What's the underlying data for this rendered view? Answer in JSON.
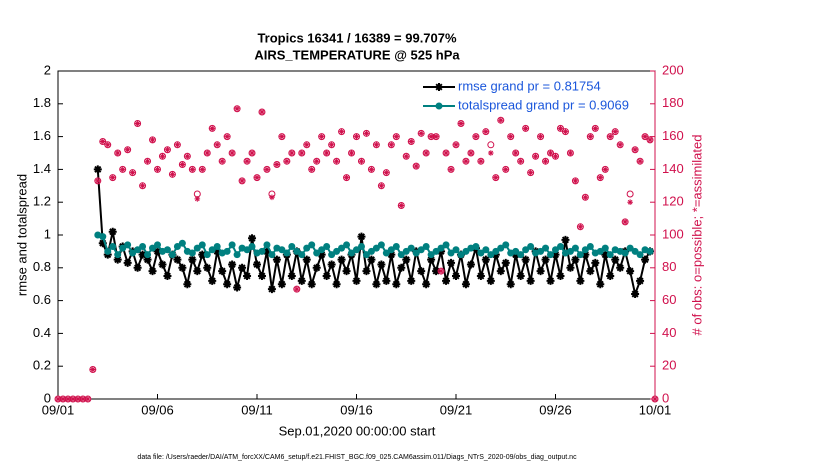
{
  "chart_data": {
    "type": "line",
    "title": "Tropics 16341 / 16389 = 99.707%",
    "subtitle": "AIRS_TEMPERATURE @ 525 hPa",
    "xlabel": "Sep.01,2020 00:00:00 start",
    "ylabel": "rmse and totalspread",
    "y2label": "# of obs: o=possible; *=assimilated",
    "footnote": "data file: /Users/raeder/DAI/ATM_forcXX/CAM6_setup/f.e21.FHIST_BGC.f09_025.CAM6assim.011/Diags_NTrS_2020-09/obs_diag_output.nc",
    "legend": "upper right",
    "xlim": [
      0,
      30
    ],
    "xticks": [
      {
        "value": 0,
        "label": "09/01"
      },
      {
        "value": 5,
        "label": "09/06"
      },
      {
        "value": 10,
        "label": "09/11"
      },
      {
        "value": 15,
        "label": "09/16"
      },
      {
        "value": 20,
        "label": "09/21"
      },
      {
        "value": 25,
        "label": "09/26"
      },
      {
        "value": 30,
        "label": "10/01"
      }
    ],
    "ylim": [
      0,
      2
    ],
    "yticks": [
      0,
      0.2,
      0.4,
      0.6,
      0.8,
      1,
      1.2,
      1.4,
      1.6,
      1.8,
      2
    ],
    "y2lim": [
      0,
      200
    ],
    "y2ticks": [
      0,
      20,
      40,
      60,
      80,
      100,
      120,
      140,
      160,
      180,
      200
    ],
    "x": [
      0,
      0.25,
      0.5,
      0.75,
      1,
      1.25,
      1.5,
      1.75,
      2,
      2.25,
      2.5,
      2.75,
      3,
      3.25,
      3.5,
      3.75,
      4,
      4.25,
      4.5,
      4.75,
      5,
      5.25,
      5.5,
      5.75,
      6,
      6.25,
      6.5,
      6.75,
      7,
      7.25,
      7.5,
      7.75,
      8,
      8.25,
      8.5,
      8.75,
      9,
      9.25,
      9.5,
      9.75,
      10,
      10.25,
      10.5,
      10.75,
      11,
      11.25,
      11.5,
      11.75,
      12,
      12.25,
      12.5,
      12.75,
      13,
      13.25,
      13.5,
      13.75,
      14,
      14.25,
      14.5,
      14.75,
      15,
      15.25,
      15.5,
      15.75,
      16,
      16.25,
      16.5,
      16.75,
      17,
      17.25,
      17.5,
      17.75,
      18,
      18.25,
      18.5,
      18.75,
      19,
      19.25,
      19.5,
      19.75,
      20,
      20.25,
      20.5,
      20.75,
      21,
      21.25,
      21.5,
      21.75,
      22,
      22.25,
      22.5,
      22.75,
      23,
      23.25,
      23.5,
      23.75,
      24,
      24.25,
      24.5,
      24.75,
      25,
      25.25,
      25.5,
      25.75,
      26,
      26.25,
      26.5,
      26.75,
      27,
      27.25,
      27.5,
      27.75,
      28,
      28.25,
      28.5,
      28.75,
      29,
      29.25,
      29.5,
      29.75,
      30
    ],
    "series": [
      {
        "name": "rmse grand pr = 0.81754",
        "color": "#000000",
        "marker": "star",
        "line": true,
        "values": [
          null,
          null,
          null,
          null,
          null,
          null,
          null,
          null,
          1.4,
          0.95,
          0.88,
          1.02,
          0.85,
          0.93,
          0.83,
          0.9,
          0.8,
          0.88,
          0.85,
          0.78,
          0.9,
          0.82,
          0.75,
          0.88,
          0.85,
          0.8,
          0.7,
          0.85,
          0.78,
          0.88,
          0.8,
          0.72,
          0.9,
          0.78,
          0.7,
          0.82,
          0.68,
          0.8,
          0.75,
          0.98,
          0.82,
          0.75,
          0.9,
          0.67,
          0.85,
          0.7,
          0.88,
          0.75,
          0.9,
          0.72,
          0.85,
          0.7,
          0.8,
          0.88,
          0.75,
          0.82,
          0.7,
          0.85,
          0.78,
          0.88,
          0.72,
          0.99,
          0.78,
          0.85,
          0.7,
          0.82,
          0.72,
          0.88,
          0.7,
          0.8,
          0.85,
          0.72,
          0.9,
          0.78,
          0.7,
          0.85,
          0.78,
          0.9,
          0.72,
          0.83,
          0.75,
          0.88,
          0.7,
          0.82,
          0.92,
          0.75,
          0.85,
          0.72,
          0.88,
          0.78,
          0.83,
          0.7,
          0.88,
          0.75,
          0.85,
          0.72,
          0.9,
          0.78,
          0.85,
          0.72,
          0.88,
          0.75,
          0.97,
          0.8,
          0.85,
          0.72,
          0.88,
          0.78,
          0.83,
          0.7,
          0.88,
          0.75,
          0.85,
          0.8,
          0.9,
          0.78,
          0.64,
          0.72,
          0.85,
          0.9,
          null
        ]
      },
      {
        "name": "totalspread grand pr = 0.9069",
        "color": "#008080",
        "marker": "dot",
        "line": true,
        "values": [
          null,
          null,
          null,
          null,
          null,
          null,
          null,
          null,
          1.0,
          0.99,
          0.9,
          0.93,
          0.88,
          0.92,
          0.94,
          0.89,
          0.91,
          0.93,
          0.88,
          0.92,
          0.94,
          0.9,
          0.91,
          0.88,
          0.93,
          0.95,
          0.9,
          0.89,
          0.92,
          0.94,
          0.88,
          0.91,
          0.93,
          0.89,
          0.9,
          0.94,
          0.88,
          0.92,
          0.91,
          0.93,
          0.89,
          0.9,
          0.94,
          0.88,
          0.92,
          0.91,
          0.89,
          0.93,
          0.9,
          0.88,
          0.92,
          0.94,
          0.89,
          0.91,
          0.93,
          0.88,
          0.9,
          0.92,
          0.94,
          0.89,
          0.91,
          0.93,
          0.88,
          0.9,
          0.92,
          0.94,
          0.89,
          0.91,
          0.93,
          0.88,
          0.9,
          0.92,
          0.89,
          0.91,
          0.93,
          0.88,
          0.9,
          0.92,
          0.94,
          0.89,
          0.91,
          0.88,
          0.9,
          0.92,
          0.93,
          0.89,
          0.91,
          0.88,
          0.9,
          0.92,
          0.94,
          0.89,
          0.9,
          0.88,
          0.91,
          0.93,
          0.89,
          0.9,
          0.92,
          0.88,
          0.91,
          0.93,
          0.89,
          0.9,
          0.92,
          0.88,
          0.91,
          0.93,
          0.89,
          0.9,
          0.92,
          0.88,
          0.91,
          0.9,
          0.89,
          0.92,
          0.9,
          0.88,
          0.91,
          0.9,
          null
        ]
      },
      {
        "name": "possible",
        "color": "#d0104c",
        "marker": "circle",
        "line": false,
        "axis": "y2",
        "values": [
          0,
          0,
          0,
          0,
          0,
          0,
          0,
          18,
          133,
          157,
          155,
          135,
          150,
          140,
          152,
          138,
          168,
          130,
          145,
          158,
          140,
          148,
          152,
          137,
          155,
          143,
          148,
          140,
          125,
          140,
          150,
          165,
          155,
          145,
          160,
          150,
          177,
          133,
          145,
          150,
          135,
          175,
          140,
          125,
          143,
          160,
          145,
          150,
          67,
          150,
          155,
          140,
          145,
          160,
          150,
          155,
          145,
          163,
          135,
          150,
          160,
          145,
          162,
          140,
          155,
          130,
          138,
          155,
          160,
          118,
          148,
          157,
          142,
          162,
          150,
          160,
          160,
          78,
          150,
          140,
          155,
          168,
          145,
          150,
          160,
          145,
          163,
          155,
          135,
          170,
          140,
          160,
          150,
          145,
          165,
          138,
          148,
          160,
          145,
          150,
          148,
          165,
          163,
          150,
          133,
          105,
          123,
          160,
          165,
          135,
          140,
          160,
          163,
          155,
          108,
          125,
          152,
          145,
          160,
          158,
          0
        ]
      },
      {
        "name": "assimilated",
        "color": "#d0104c",
        "marker": "asterisk",
        "line": false,
        "axis": "y2",
        "values": [
          0,
          0,
          0,
          0,
          0,
          0,
          0,
          18,
          133,
          157,
          155,
          135,
          150,
          140,
          152,
          138,
          168,
          130,
          145,
          158,
          140,
          148,
          152,
          137,
          155,
          143,
          148,
          140,
          122,
          140,
          150,
          165,
          155,
          145,
          160,
          150,
          177,
          133,
          145,
          150,
          135,
          175,
          140,
          123,
          143,
          160,
          145,
          150,
          67,
          150,
          155,
          140,
          145,
          160,
          150,
          155,
          145,
          163,
          135,
          150,
          160,
          145,
          162,
          140,
          155,
          130,
          138,
          155,
          160,
          118,
          148,
          157,
          142,
          162,
          150,
          160,
          160,
          78,
          150,
          140,
          155,
          168,
          145,
          150,
          160,
          145,
          163,
          150,
          135,
          170,
          140,
          160,
          150,
          145,
          165,
          138,
          148,
          160,
          145,
          150,
          148,
          165,
          163,
          150,
          133,
          105,
          123,
          160,
          165,
          135,
          140,
          160,
          163,
          155,
          108,
          120,
          152,
          145,
          160,
          158,
          0
        ]
      }
    ]
  }
}
